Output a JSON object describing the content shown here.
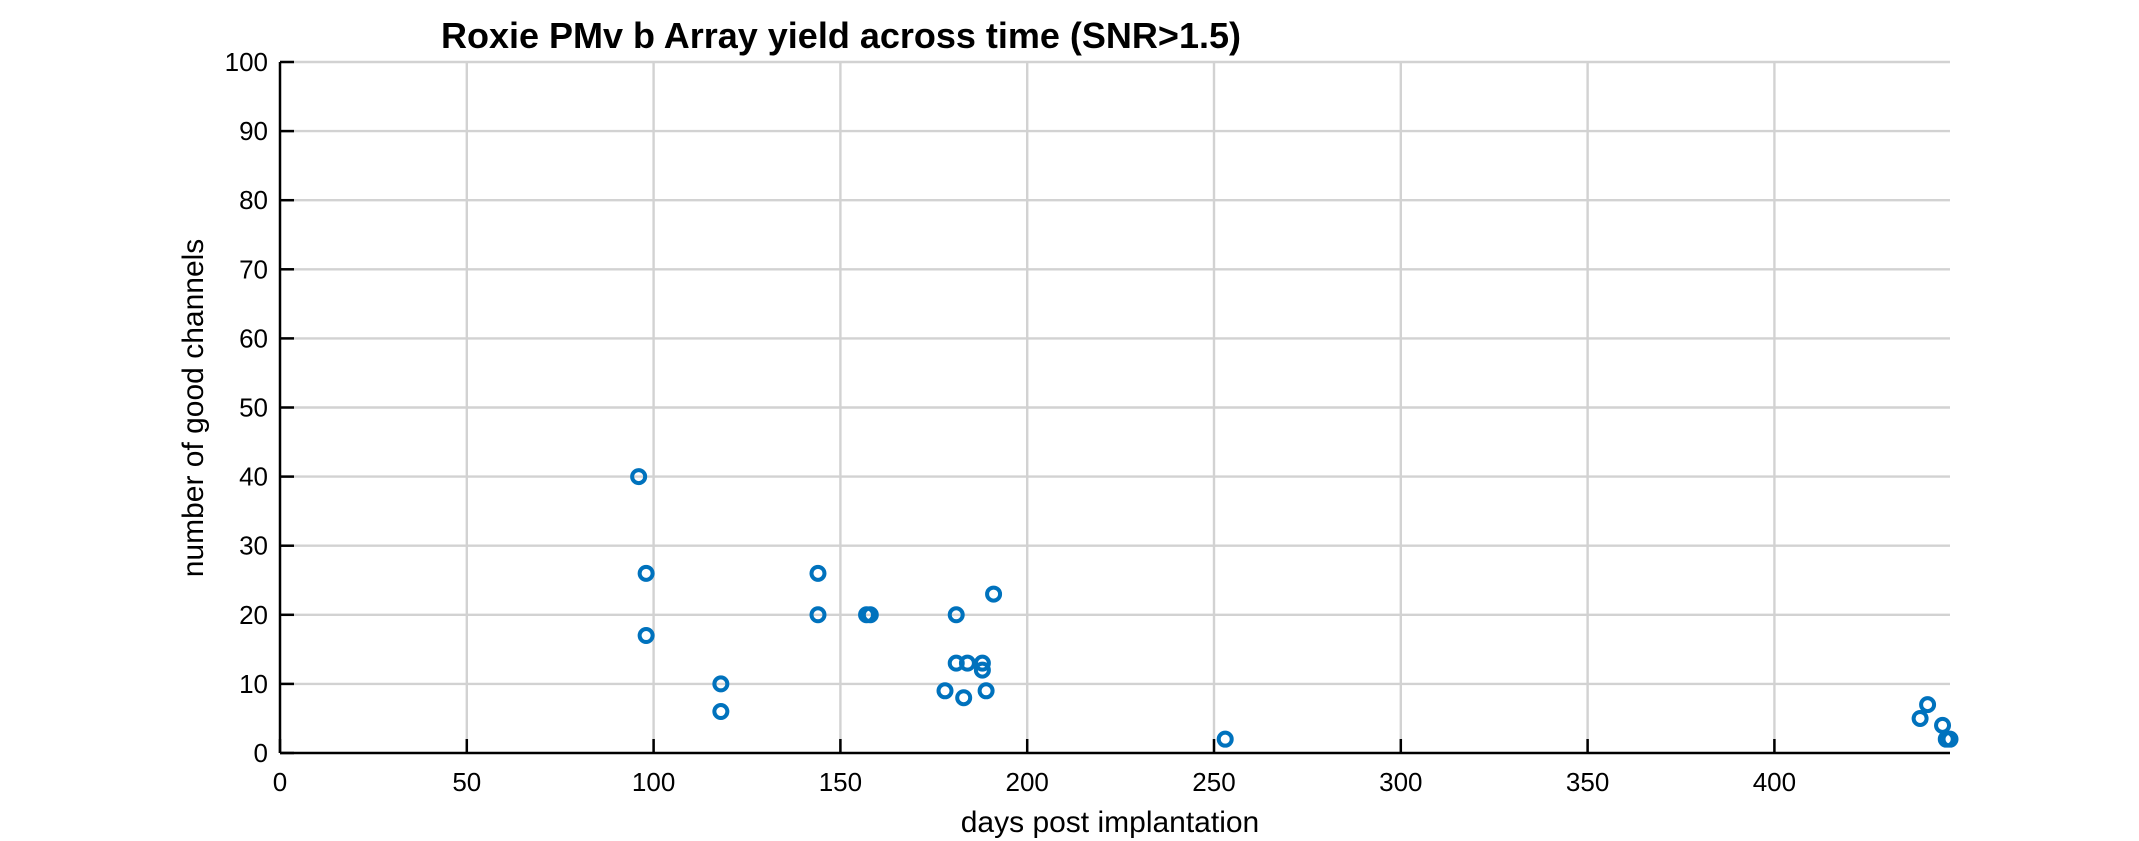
{
  "chart_data": {
    "type": "scatter",
    "title": "Roxie PMv b Array yield across time (SNR>1.5)",
    "xlabel": "days post implantation",
    "ylabel": "number of good channels",
    "xlim": [
      0,
      447
    ],
    "ylim": [
      0,
      100
    ],
    "xticks": [
      0,
      50,
      100,
      150,
      200,
      250,
      300,
      350,
      400
    ],
    "yticks": [
      0,
      10,
      20,
      30,
      40,
      50,
      60,
      70,
      80,
      90,
      100
    ],
    "grid": true,
    "marker": "open-circle",
    "color": "#0072BD",
    "series": [
      {
        "points": [
          {
            "x": 96,
            "y": 40
          },
          {
            "x": 98,
            "y": 26
          },
          {
            "x": 98,
            "y": 17
          },
          {
            "x": 118,
            "y": 10
          },
          {
            "x": 118,
            "y": 6
          },
          {
            "x": 144,
            "y": 26
          },
          {
            "x": 144,
            "y": 20
          },
          {
            "x": 157,
            "y": 20
          },
          {
            "x": 158,
            "y": 20
          },
          {
            "x": 178,
            "y": 9
          },
          {
            "x": 181,
            "y": 20
          },
          {
            "x": 181,
            "y": 13
          },
          {
            "x": 183,
            "y": 8
          },
          {
            "x": 184,
            "y": 13
          },
          {
            "x": 188,
            "y": 13
          },
          {
            "x": 188,
            "y": 12
          },
          {
            "x": 189,
            "y": 9
          },
          {
            "x": 191,
            "y": 23
          },
          {
            "x": 253,
            "y": 2
          },
          {
            "x": 439,
            "y": 5
          },
          {
            "x": 441,
            "y": 7
          },
          {
            "x": 445,
            "y": 4
          },
          {
            "x": 446,
            "y": 2
          },
          {
            "x": 447,
            "y": 2
          }
        ]
      }
    ]
  }
}
